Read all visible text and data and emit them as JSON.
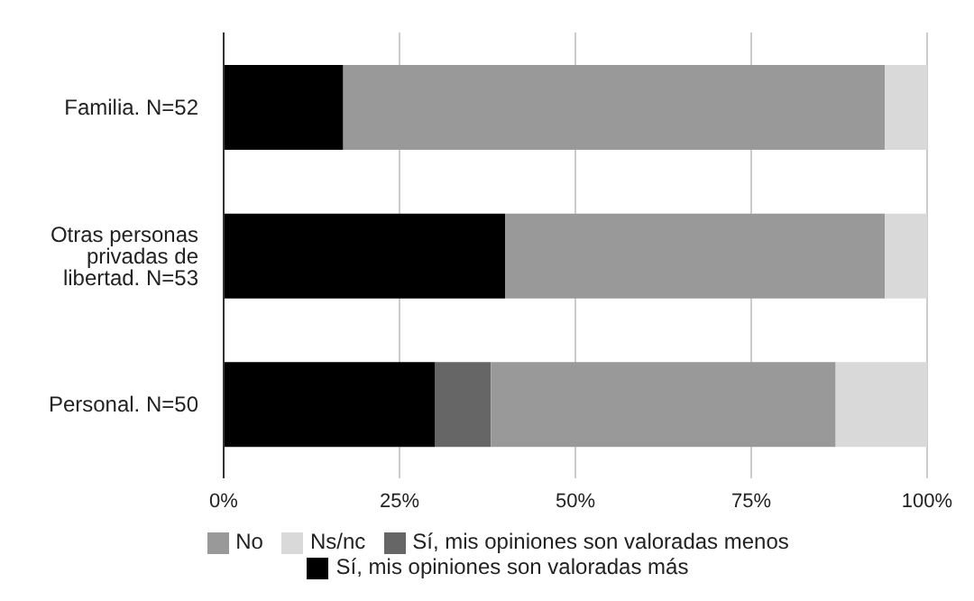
{
  "chart_data": {
    "type": "bar",
    "orientation": "horizontal",
    "stacked": true,
    "categories": [
      "Familia. N=52",
      "Otras personas privadas de libertad. N=53",
      "Personal. N=50"
    ],
    "series": [
      {
        "name": "Sí, mis opiniones son valoradas más",
        "color": "#000000",
        "values": [
          17,
          40,
          30
        ]
      },
      {
        "name": "Sí, mis opiniones son valoradas menos",
        "color": "#666666",
        "values": [
          0,
          0,
          8
        ]
      },
      {
        "name": "No",
        "color": "#999999",
        "values": [
          77,
          54,
          49
        ]
      },
      {
        "name": "Ns/nc",
        "color": "#d9d9d9",
        "values": [
          6,
          6,
          13
        ]
      }
    ],
    "xlim": [
      0,
      100
    ],
    "xticks": [
      {
        "value": 0,
        "label": "0%"
      },
      {
        "value": 25,
        "label": "25%"
      },
      {
        "value": 50,
        "label": "50%"
      },
      {
        "value": 75,
        "label": "75%"
      },
      {
        "value": 100,
        "label": "100%"
      }
    ],
    "grid": "x",
    "legend": "bottom"
  }
}
